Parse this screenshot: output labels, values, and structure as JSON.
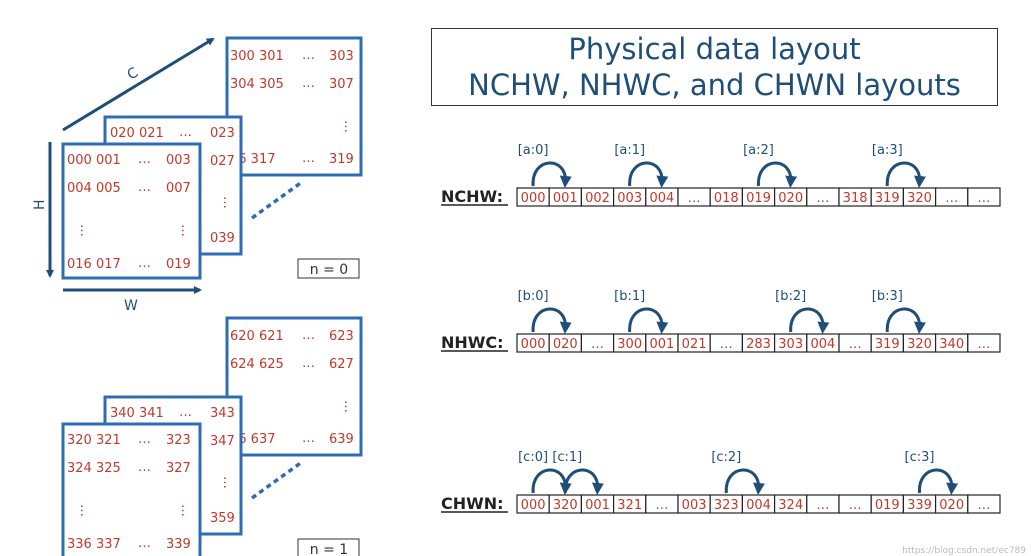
{
  "title": {
    "line1": "Physical data layout",
    "line2": "NCHW, NHWC, and CHWN layouts"
  },
  "axes": {
    "c": "C",
    "h": "H",
    "w": "W"
  },
  "tensors": [
    {
      "batch_label": "n = 0",
      "back": {
        "r1": [
          "300 301",
          "…",
          "303"
        ],
        "r2": [
          "304 305",
          "…",
          "307"
        ],
        "mid": "…",
        "r3": [
          "16 317",
          "…",
          "319"
        ]
      },
      "middle": {
        "r1": [
          "020 021",
          "…",
          "023"
        ],
        "r2": "027",
        "mid": "…",
        "r3": "039"
      },
      "front": {
        "r1": [
          "000 001",
          "…",
          "003"
        ],
        "r2": [
          "004 005",
          "…",
          "007"
        ],
        "mid": [
          "…",
          "…"
        ],
        "r3": [
          "016 017",
          "…",
          "019"
        ]
      }
    },
    {
      "batch_label": "n = 1",
      "back": {
        "r1": [
          "620 621",
          "…",
          "623"
        ],
        "r2": [
          "624 625",
          "…",
          "627"
        ],
        "mid": "…",
        "r3": [
          "36 637",
          "…",
          "639"
        ]
      },
      "middle": {
        "r1": [
          "340 341",
          "…",
          "343"
        ],
        "r2": "347",
        "mid": "…",
        "r3": "359"
      },
      "front": {
        "r1": [
          "320 321",
          "…",
          "323"
        ],
        "r2": [
          "324 325",
          "…",
          "327"
        ],
        "mid": [
          "…",
          "…"
        ],
        "r3": [
          "336 337",
          "…",
          "339"
        ]
      }
    }
  ],
  "layouts": [
    {
      "name": "NCHW:",
      "cells": [
        "000",
        "001",
        "002",
        "003",
        "004",
        "…",
        "018",
        "019",
        "020",
        "…",
        "318",
        "319",
        "320",
        "…",
        "…"
      ],
      "arrows": [
        {
          "label": "[a:0]",
          "from": 0,
          "to": 1
        },
        {
          "label": "[a:1]",
          "from": 3,
          "to": 4
        },
        {
          "label": "[a:2]",
          "from": 7,
          "to": 8
        },
        {
          "label": "[a:3]",
          "from": 11,
          "to": 12
        }
      ]
    },
    {
      "name": "NHWC:",
      "cells": [
        "000",
        "020",
        "…",
        "300",
        "001",
        "021",
        "…",
        "283",
        "303",
        "004",
        "…",
        "319",
        "320",
        "340",
        "…"
      ],
      "arrows": [
        {
          "label": "[b:0]",
          "from": 0,
          "to": 1
        },
        {
          "label": "[b:1]",
          "from": 3,
          "to": 4
        },
        {
          "label": "[b:2]",
          "from": 8,
          "to": 9
        },
        {
          "label": "[b:3]",
          "from": 11,
          "to": 12
        }
      ]
    },
    {
      "name": "CHWN:",
      "cells": [
        "000",
        "320",
        "001",
        "321",
        "…",
        "003",
        "323",
        "004",
        "324",
        "…",
        "…",
        "019",
        "339",
        "020",
        "…"
      ],
      "arrows": [
        {
          "label": "[c:0]",
          "from": 0,
          "to": 1
        },
        {
          "label": "[c:1]",
          "from": 1,
          "to": 2
        },
        {
          "label": "[c:2]",
          "from": 6,
          "to": 7
        },
        {
          "label": "[c:3]",
          "from": 12,
          "to": 13
        }
      ]
    }
  ],
  "watermark": "https://blog.csdn.net/ec789",
  "colors": {
    "blue": "#2e6db4",
    "dark_blue": "#1f4e79",
    "red": "#c0392b",
    "black": "#222222"
  }
}
